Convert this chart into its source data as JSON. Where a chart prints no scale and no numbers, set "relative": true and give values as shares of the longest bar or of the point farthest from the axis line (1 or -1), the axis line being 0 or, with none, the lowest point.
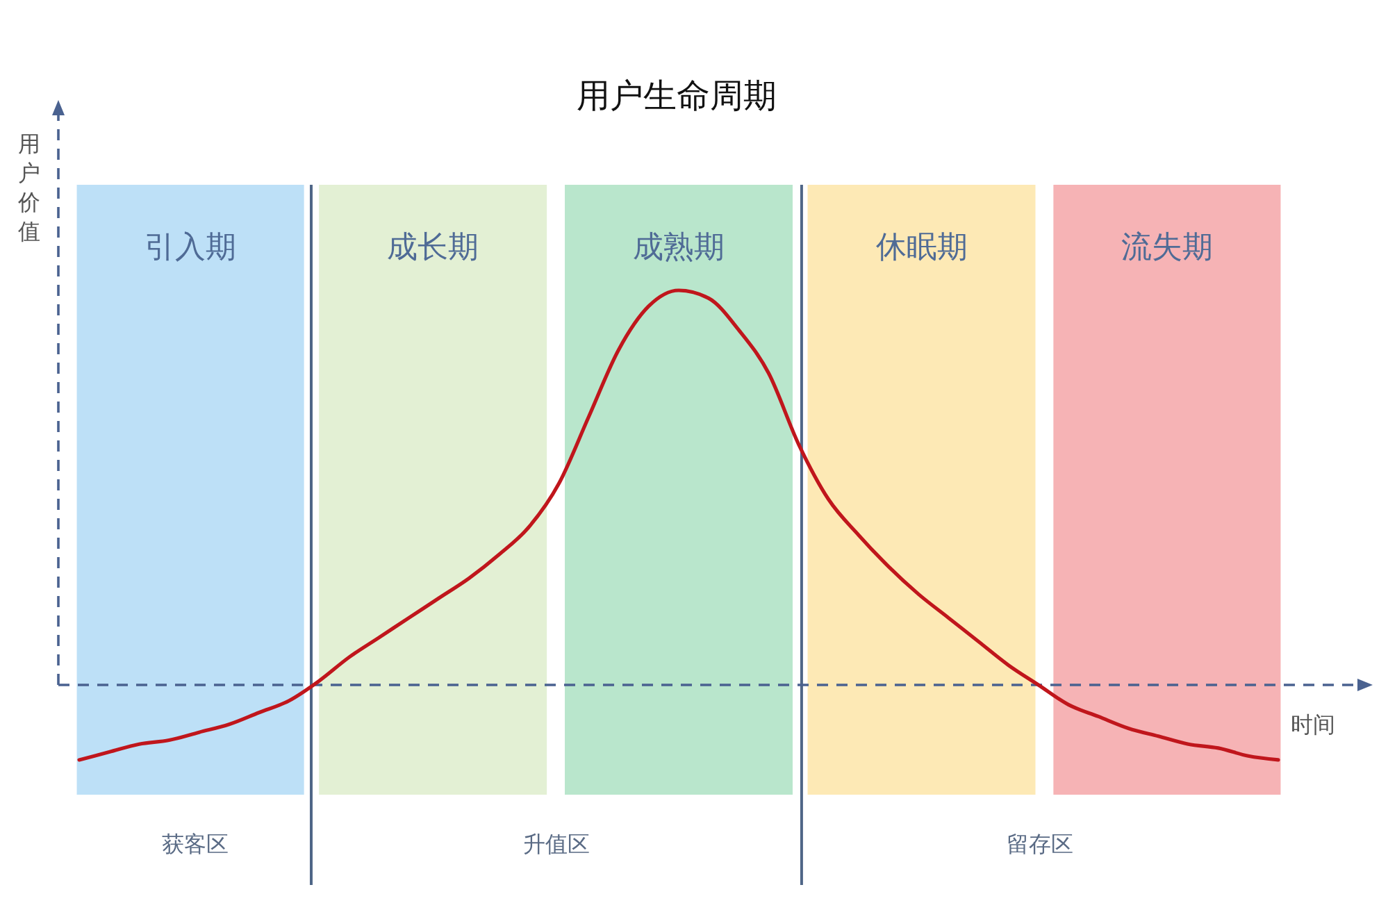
{
  "chart_data": {
    "type": "line",
    "title": "用户生命周期",
    "xlabel": "时间",
    "ylabel": "用户价值",
    "relative": true,
    "categories": [
      null,
      null,
      null,
      null,
      null,
      null,
      null,
      null,
      null,
      null,
      null,
      null,
      null,
      null,
      null,
      null,
      null,
      null,
      null,
      null,
      null,
      null,
      null,
      null,
      null,
      null,
      null,
      null,
      null,
      null,
      null,
      null,
      null,
      null,
      null,
      null,
      null,
      null,
      null,
      null,
      null
    ],
    "series": [
      {
        "color": "#c0161c",
        "values": [
          -0.19,
          -0.17,
          -0.15,
          -0.14,
          -0.12,
          -0.1,
          -0.07,
          -0.04,
          0.01,
          0.07,
          0.12,
          0.17,
          0.22,
          0.27,
          0.33,
          0.4,
          0.51,
          0.68,
          0.85,
          0.96,
          1.0,
          0.98,
          0.9,
          0.79,
          0.61,
          0.47,
          0.38,
          0.3,
          0.23,
          0.17,
          0.11,
          0.05,
          0.0,
          -0.05,
          -0.08,
          -0.11,
          -0.13,
          -0.15,
          -0.16,
          -0.18,
          -0.19
        ]
      }
    ],
    "ref_lines": [
      {
        "axis": "y",
        "value": 0,
        "color": "#4a6290",
        "line_style": "dashed"
      }
    ],
    "annotations": [
      "引入期",
      "成长期",
      "成熟期",
      "休眠期",
      "流失期",
      "获客区",
      "升值区",
      "留存区"
    ]
  }
}
